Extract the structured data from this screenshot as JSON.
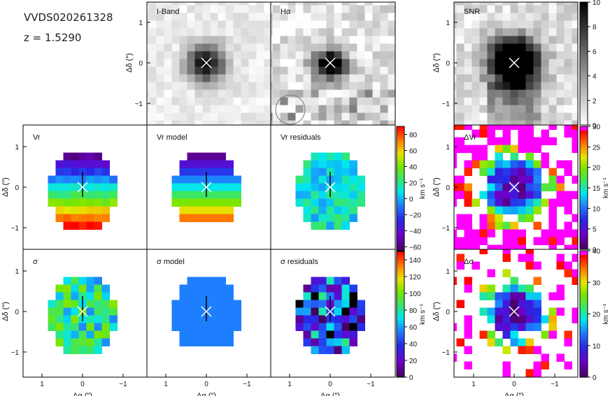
{
  "header": {
    "object_id": "VVDS020261328",
    "redshift": "z  =  1.5290"
  },
  "panels": {
    "iband": "I-Band",
    "halpha": "Hα",
    "snr": "SNR",
    "vr": "Vr",
    "vr_model": "Vr model",
    "vr_resid": "Vr residuals",
    "dvr": "ΔVr",
    "sigma": "σ",
    "sigma_model": "σ model",
    "sigma_resid": "σ residuals",
    "dsigma": "Δσ"
  },
  "axes": {
    "xlabel": "Δα (″)",
    "ylabel": "Δδ (″)",
    "xticks": [
      "1",
      "0",
      "−1"
    ],
    "yticks": [
      "1",
      "0",
      "−1"
    ]
  },
  "colorbars": {
    "snr": {
      "ticks": [
        "10",
        "8",
        "6",
        "4",
        "2",
        "0"
      ],
      "range": [
        0,
        10
      ]
    },
    "vr": {
      "ticks": [
        "80",
        "60",
        "40",
        "20",
        "0",
        "−20",
        "−40",
        "−60"
      ],
      "range": [
        -65,
        90
      ],
      "label": "km s⁻¹"
    },
    "dvr": {
      "ticks": [
        "30",
        "25",
        "20",
        "15",
        "10",
        "5",
        "0"
      ],
      "range": [
        0,
        30
      ],
      "label": "km s⁻¹"
    },
    "sigma": {
      "ticks": [
        "140",
        "120",
        "100",
        "80",
        "60",
        "40",
        "20",
        "0"
      ],
      "range": [
        0,
        150
      ],
      "label": "km s⁻¹"
    },
    "dsigma": {
      "ticks": [
        "40",
        "30",
        "20",
        "10",
        "0"
      ],
      "range": [
        0,
        40
      ],
      "label": "km s⁻¹"
    }
  }
}
